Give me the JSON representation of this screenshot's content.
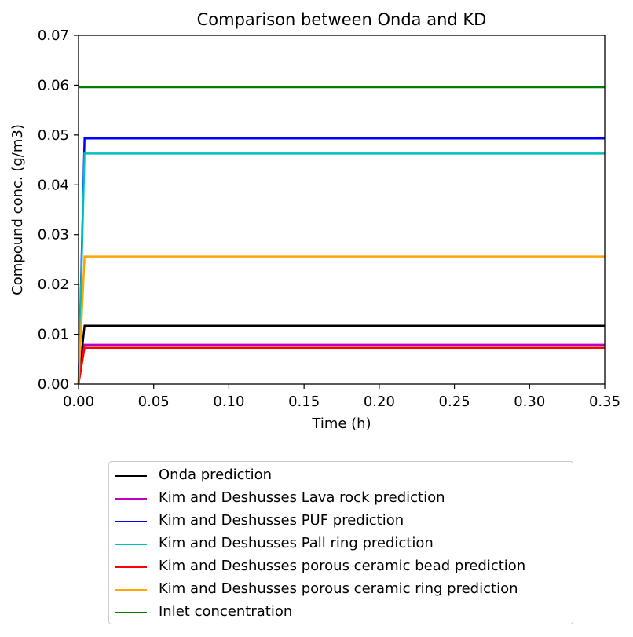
{
  "chart_data": {
    "type": "line",
    "title": "Comparison between Onda and KD",
    "xlabel": "Time (h)",
    "ylabel": "Compound conc. (g/m3)",
    "xlim": [
      0.0,
      0.35
    ],
    "ylim": [
      0.0,
      0.07
    ],
    "xticks": [
      "0.00",
      "0.05",
      "0.10",
      "0.15",
      "0.20",
      "0.25",
      "0.30",
      "0.35"
    ],
    "yticks": [
      "0.00",
      "0.01",
      "0.02",
      "0.03",
      "0.04",
      "0.05",
      "0.06",
      "0.07"
    ],
    "grid": false,
    "legend_position": "below plot",
    "series": [
      {
        "name": "Onda prediction",
        "color": "#000000",
        "x": [
          0.0,
          0.004,
          0.35
        ],
        "y": [
          0.0,
          0.0117,
          0.0117
        ]
      },
      {
        "name": "Kim and Deshusses Lava rock prediction",
        "color": "#bf00bf",
        "x": [
          0.0,
          0.004,
          0.35
        ],
        "y": [
          0.0,
          0.0079,
          0.0079
        ]
      },
      {
        "name": "Kim and Deshusses PUF prediction",
        "color": "#0000ff",
        "x": [
          0.0,
          0.004,
          0.35
        ],
        "y": [
          0.0,
          0.0493,
          0.0493
        ]
      },
      {
        "name": "Kim and Deshusses Pall ring prediction",
        "color": "#00bfbf",
        "x": [
          0.0,
          0.004,
          0.35
        ],
        "y": [
          0.0,
          0.0463,
          0.0463
        ]
      },
      {
        "name": "Kim and Deshusses porous ceramic bead prediction",
        "color": "#ff0000",
        "x": [
          0.0,
          0.004,
          0.35
        ],
        "y": [
          0.0,
          0.0073,
          0.0073
        ]
      },
      {
        "name": "Kim and Deshusses porous ceramic ring prediction",
        "color": "#ffa500",
        "x": [
          0.0,
          0.004,
          0.35
        ],
        "y": [
          0.0,
          0.0256,
          0.0256
        ]
      },
      {
        "name": "Inlet concentration",
        "color": "#008000",
        "x": [
          0.0,
          0.35
        ],
        "y": [
          0.0596,
          0.0596
        ]
      }
    ]
  }
}
